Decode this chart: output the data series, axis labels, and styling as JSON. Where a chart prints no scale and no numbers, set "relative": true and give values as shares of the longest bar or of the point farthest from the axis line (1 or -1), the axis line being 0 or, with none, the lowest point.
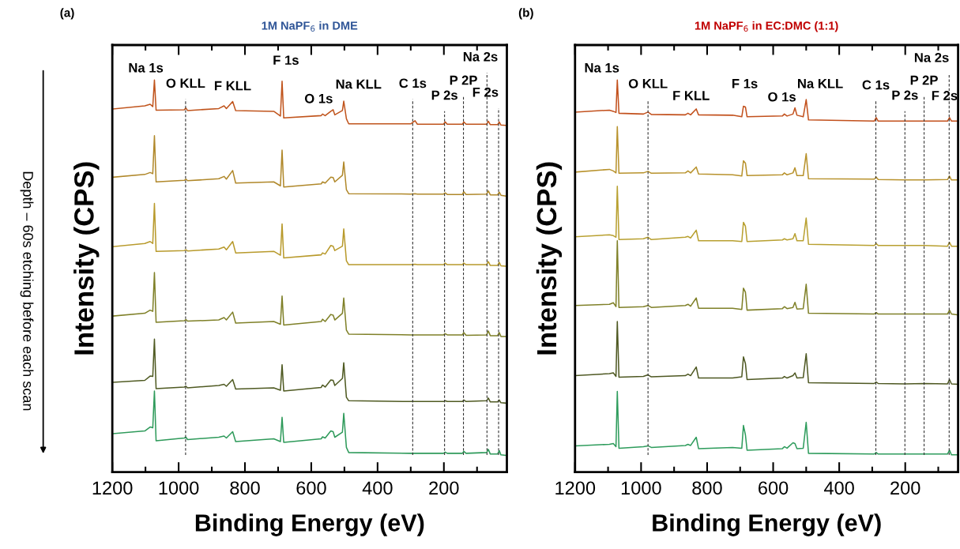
{
  "chart_data": [
    {
      "type": "line",
      "title": "1M NaPF$_{6}$ in DME",
      "xlabel": "Binding Energy (eV)",
      "ylabel": "Intensity (CPS)",
      "relative": true,
      "tick_labels": "x",
      "xlim": [
        1200,
        10
      ],
      "xticks": [
        1200,
        {
          "value": 1100,
          "label": null
        },
        1000,
        {
          "value": 900,
          "label": null
        },
        800,
        {
          "value": 700,
          "label": null
        },
        600,
        {
          "value": 500,
          "label": null
        },
        400,
        {
          "value": 300,
          "label": null
        },
        200,
        {
          "value": 100,
          "label": null
        }
      ],
      "x": [
        1198,
        1102,
        1086,
        1078,
        1073,
        1068,
        983,
        978,
        973,
        879,
        863,
        856,
        837,
        828,
        713,
        693,
        688,
        683,
        570,
        566,
        558,
        541,
        534,
        529,
        506,
        502,
        494,
        487,
        300,
        287,
        280,
        201,
        196,
        190,
        144,
        140,
        133,
        71,
        66,
        60,
        38,
        33,
        28,
        14
      ],
      "series": [
        {
          "color": "#c0541c",
          "values": [
            0.926,
            0.934,
            0.938,
            0.932,
            1.0,
            0.923,
            0.924,
            0.928,
            0.922,
            0.927,
            0.934,
            0.927,
            0.945,
            0.922,
            0.92,
            0.908,
            0.997,
            0.903,
            0.909,
            0.913,
            0.909,
            0.92,
            0.924,
            0.911,
            0.922,
            0.946,
            0.901,
            0.888,
            0.888,
            0.896,
            0.887,
            0.887,
            0.893,
            0.887,
            0.887,
            0.893,
            0.887,
            0.887,
            0.895,
            0.886,
            0.886,
            0.893,
            0.885,
            0.884
          ]
        },
        {
          "color": "#b0882a",
          "values": [
            0.752,
            0.759,
            0.764,
            0.761,
            0.858,
            0.74,
            0.744,
            0.747,
            0.743,
            0.748,
            0.754,
            0.747,
            0.769,
            0.737,
            0.74,
            0.73,
            0.821,
            0.727,
            0.735,
            0.74,
            0.737,
            0.752,
            0.751,
            0.74,
            0.757,
            0.791,
            0.72,
            0.71,
            0.709,
            0.71,
            0.709,
            0.709,
            0.712,
            0.708,
            0.708,
            0.715,
            0.708,
            0.709,
            0.717,
            0.707,
            0.707,
            0.714,
            0.706,
            0.704
          ]
        },
        {
          "color": "#b89a2c",
          "values": [
            0.575,
            0.583,
            0.588,
            0.583,
            0.685,
            0.563,
            0.565,
            0.567,
            0.564,
            0.569,
            0.574,
            0.567,
            0.588,
            0.559,
            0.563,
            0.553,
            0.633,
            0.546,
            0.554,
            0.559,
            0.556,
            0.578,
            0.576,
            0.565,
            0.576,
            0.62,
            0.539,
            0.529,
            0.529,
            0.53,
            0.529,
            0.529,
            0.533,
            0.529,
            0.529,
            0.533,
            0.529,
            0.529,
            0.537,
            0.527,
            0.527,
            0.535,
            0.526,
            0.525
          ]
        },
        {
          "color": "#7f8028",
          "values": [
            0.398,
            0.405,
            0.413,
            0.41,
            0.509,
            0.382,
            0.386,
            0.389,
            0.385,
            0.388,
            0.394,
            0.388,
            0.408,
            0.38,
            0.384,
            0.377,
            0.449,
            0.375,
            0.384,
            0.39,
            0.384,
            0.402,
            0.4,
            0.388,
            0.405,
            0.444,
            0.362,
            0.352,
            0.35,
            0.35,
            0.35,
            0.35,
            0.353,
            0.35,
            0.35,
            0.356,
            0.349,
            0.35,
            0.36,
            0.348,
            0.348,
            0.356,
            0.346,
            0.346
          ]
        },
        {
          "color": "#4f5a22",
          "values": [
            0.229,
            0.234,
            0.245,
            0.244,
            0.339,
            0.213,
            0.217,
            0.219,
            0.215,
            0.221,
            0.224,
            0.219,
            0.236,
            0.212,
            0.215,
            0.209,
            0.274,
            0.207,
            0.216,
            0.222,
            0.217,
            0.235,
            0.234,
            0.221,
            0.239,
            0.279,
            0.191,
            0.182,
            0.18,
            0.18,
            0.18,
            0.18,
            0.182,
            0.18,
            0.18,
            0.184,
            0.18,
            0.182,
            0.189,
            0.179,
            0.179,
            0.184,
            0.177,
            0.176
          ]
        },
        {
          "color": "#2e9a5a",
          "values": [
            0.098,
            0.105,
            0.115,
            0.113,
            0.207,
            0.08,
            0.087,
            0.089,
            0.083,
            0.089,
            0.092,
            0.087,
            0.103,
            0.078,
            0.085,
            0.078,
            0.14,
            0.076,
            0.085,
            0.09,
            0.087,
            0.105,
            0.103,
            0.089,
            0.102,
            0.15,
            0.063,
            0.05,
            0.048,
            0.048,
            0.048,
            0.048,
            0.051,
            0.048,
            0.048,
            0.053,
            0.048,
            0.05,
            0.058,
            0.046,
            0.046,
            0.055,
            0.044,
            0.043
          ]
        }
      ],
      "ref_lines": [
        {
          "axis": "x",
          "value": 979,
          "label": "O KLL",
          "line_style": "dashed"
        },
        {
          "axis": "x",
          "value": 294,
          "label": "C 1s",
          "line_style": "dashed"
        },
        {
          "axis": "x",
          "value": 198,
          "label": "P 2s",
          "line_style": "dashed"
        },
        {
          "axis": "x",
          "value": 141,
          "label": "P 2P",
          "line_style": "dashed"
        },
        {
          "axis": "x",
          "value": 70,
          "label": "Na 2s",
          "line_style": "dashed"
        },
        {
          "axis": "x",
          "value": 35,
          "label": "F 2s",
          "line_style": "dashed"
        }
      ],
      "annotations": [
        "(a)",
        "Depth – 60s etching before each scan",
        "Na 1s",
        "F KLL",
        "F 1s",
        "O 1s",
        "Na KLL"
      ]
    },
    {
      "type": "line",
      "title": "1M NaPF$_{6}$ in EC:DMC (1:1)",
      "xlabel": "Binding Energy (eV)",
      "ylabel": "Intensity (CPS)",
      "relative": true,
      "tick_labels": "x",
      "xlim": [
        1200,
        40
      ],
      "xticks": [
        1200,
        {
          "value": 1100,
          "label": null
        },
        1000,
        {
          "value": 900,
          "label": null
        },
        800,
        {
          "value": 700,
          "label": null
        },
        600,
        {
          "value": 500,
          "label": null
        },
        400,
        {
          "value": 300,
          "label": null
        },
        200,
        {
          "value": 100,
          "label": null
        }
      ],
      "x": [
        1199,
        1096,
        1084,
        1076,
        1072,
        1067,
        993,
        979,
        969,
        866,
        858,
        850,
        833,
        826,
        723,
        695,
        690,
        684,
        679,
        572,
        566,
        558,
        540,
        534,
        528,
        509,
        500,
        493,
        294,
        288,
        282,
        201,
        142,
        72,
        66,
        60,
        40
      ],
      "series": [
        {
          "color": "#c2501c",
          "values": [
            0.918,
            0.923,
            0.92,
            0.917,
            1.0,
            0.915,
            0.913,
            0.918,
            0.912,
            0.911,
            0.915,
            0.911,
            0.926,
            0.911,
            0.91,
            0.906,
            0.933,
            0.931,
            0.906,
            0.908,
            0.913,
            0.908,
            0.913,
            0.929,
            0.91,
            0.906,
            0.95,
            0.898,
            0.895,
            0.904,
            0.895,
            0.895,
            0.895,
            0.895,
            0.904,
            0.895,
            0.895
          ]
        },
        {
          "color": "#b8922c",
          "values": [
            0.765,
            0.772,
            0.768,
            0.763,
            0.881,
            0.762,
            0.763,
            0.767,
            0.762,
            0.763,
            0.768,
            0.763,
            0.778,
            0.76,
            0.758,
            0.755,
            0.794,
            0.788,
            0.756,
            0.758,
            0.763,
            0.758,
            0.763,
            0.776,
            0.756,
            0.756,
            0.812,
            0.748,
            0.747,
            0.752,
            0.746,
            0.745,
            0.745,
            0.746,
            0.755,
            0.745,
            0.745
          ]
        },
        {
          "color": "#b8a030",
          "values": [
            0.6,
            0.605,
            0.603,
            0.599,
            0.729,
            0.593,
            0.595,
            0.599,
            0.593,
            0.599,
            0.601,
            0.597,
            0.617,
            0.59,
            0.59,
            0.588,
            0.637,
            0.627,
            0.588,
            0.592,
            0.595,
            0.592,
            0.595,
            0.608,
            0.59,
            0.59,
            0.648,
            0.581,
            0.578,
            0.583,
            0.578,
            0.578,
            0.578,
            0.576,
            0.586,
            0.576,
            0.576
          ]
        },
        {
          "color": "#7f8028",
          "values": [
            0.425,
            0.428,
            0.432,
            0.422,
            0.59,
            0.42,
            0.422,
            0.425,
            0.42,
            0.425,
            0.428,
            0.423,
            0.444,
            0.418,
            0.418,
            0.415,
            0.469,
            0.459,
            0.413,
            0.417,
            0.422,
            0.417,
            0.42,
            0.433,
            0.416,
            0.417,
            0.479,
            0.405,
            0.403,
            0.407,
            0.403,
            0.403,
            0.403,
            0.403,
            0.413,
            0.403,
            0.401
          ]
        },
        {
          "color": "#4e5822",
          "values": [
            0.246,
            0.251,
            0.253,
            0.244,
            0.384,
            0.242,
            0.244,
            0.248,
            0.243,
            0.246,
            0.25,
            0.246,
            0.268,
            0.24,
            0.24,
            0.243,
            0.294,
            0.277,
            0.236,
            0.24,
            0.244,
            0.24,
            0.246,
            0.253,
            0.24,
            0.241,
            0.302,
            0.228,
            0.226,
            0.23,
            0.226,
            0.225,
            0.226,
            0.225,
            0.236,
            0.225,
            0.224
          ]
        },
        {
          "color": "#2e9c5c",
          "values": [
            0.067,
            0.071,
            0.073,
            0.065,
            0.206,
            0.061,
            0.065,
            0.067,
            0.063,
            0.068,
            0.071,
            0.068,
            0.089,
            0.06,
            0.063,
            0.061,
            0.119,
            0.095,
            0.056,
            0.06,
            0.065,
            0.061,
            0.075,
            0.073,
            0.06,
            0.061,
            0.127,
            0.048,
            0.046,
            0.05,
            0.046,
            0.046,
            0.046,
            0.046,
            0.056,
            0.044,
            0.044
          ]
        }
      ],
      "ref_lines": [
        {
          "axis": "x",
          "value": 979,
          "label": "O KLL",
          "line_style": "dashed"
        },
        {
          "axis": "x",
          "value": 289,
          "label": "C 1s",
          "line_style": "dashed"
        },
        {
          "axis": "x",
          "value": 201,
          "label": "P 2s",
          "line_style": "dashed"
        },
        {
          "axis": "x",
          "value": 143,
          "label": "P 2P",
          "line_style": "dashed"
        },
        {
          "axis": "x",
          "value": 67,
          "label": "Na 2s",
          "line_style": "dashed"
        }
      ],
      "annotations": [
        "(b)",
        "Na 1s",
        "F KLL",
        "F 1s",
        "O 1s",
        "Na KLL",
        "F 2s"
      ]
    }
  ]
}
